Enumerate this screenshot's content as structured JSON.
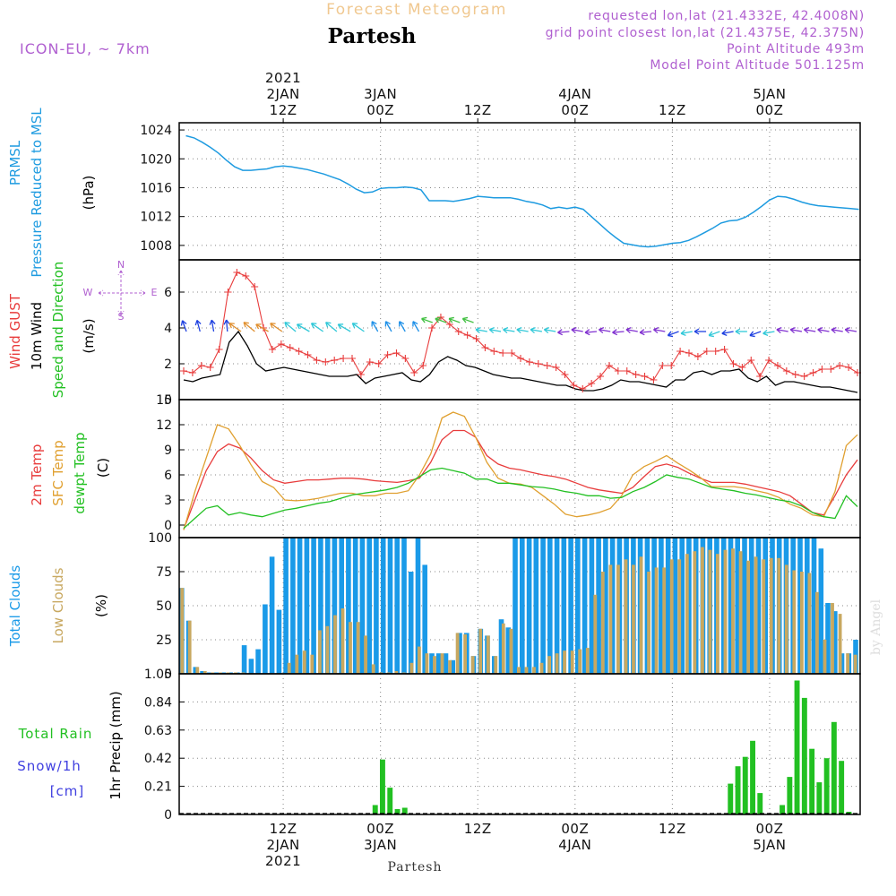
{
  "header": {
    "title": "Forecast Meteogram",
    "location": "Partesh",
    "model": "ICON-EU, ~ 7km",
    "requested": "requested lon,lat (21.4332E, 42.4008N)",
    "grid": "grid point closest lon,lat (21.4375E, 42.375N)",
    "point_alt": "Point Altitude 493m",
    "model_alt": "Model Point Altitude 501.125m",
    "footer": "Partesh",
    "watermark": "by Angel"
  },
  "colors": {
    "pressure": "#1e9be0",
    "gust": "#e83c3c",
    "wind": "#000000",
    "temp": "#e83c3c",
    "sfc": "#e0a030",
    "dew": "#22c022",
    "total_cloud": "#1a9ae8",
    "low_cloud": "#c8a860",
    "rain": "#22c022",
    "snow": "#4040e0",
    "title_orange": "#f0c890",
    "purple": "#b060d0"
  },
  "time_axis": {
    "top": [
      {
        "h": 12,
        "lines": [
          "2021",
          "2JAN",
          "12Z"
        ]
      },
      {
        "h": 24,
        "lines": [
          "3JAN",
          "00Z"
        ]
      },
      {
        "h": 36,
        "lines": [
          "12Z"
        ]
      },
      {
        "h": 48,
        "lines": [
          "4JAN",
          "00Z"
        ]
      },
      {
        "h": 60,
        "lines": [
          "12Z"
        ]
      },
      {
        "h": 72,
        "lines": [
          "5JAN",
          "00Z"
        ]
      }
    ],
    "bottom": [
      {
        "h": 12,
        "lines": [
          "12Z",
          "2JAN",
          "2021"
        ]
      },
      {
        "h": 24,
        "lines": [
          "00Z",
          "3JAN"
        ]
      },
      {
        "h": 36,
        "lines": [
          "12Z"
        ]
      },
      {
        "h": 48,
        "lines": [
          "00Z",
          "4JAN"
        ]
      },
      {
        "h": 60,
        "lines": [
          "12Z"
        ]
      },
      {
        "h": 72,
        "lines": [
          "00Z",
          "5JAN"
        ]
      }
    ]
  },
  "panels": {
    "pressure": {
      "labels": [
        "PRMSL",
        "Pressure Reduced to MSL"
      ],
      "unit": "(hPa)"
    },
    "wind": {
      "gust": "Wind GUST",
      "wind": "10m Wind",
      "dir": "Speed and Direction",
      "unit": "(m/s)",
      "compass": {
        "n": "N",
        "s": "S",
        "e": "E",
        "w": "W"
      }
    },
    "temp": {
      "t2m": "2m Temp",
      "sfc": "SFC Temp",
      "dew": "dewpt Temp",
      "unit": "(C)"
    },
    "cloud": {
      "total": "Total Clouds",
      "low": "Low Clouds",
      "unit": "(%)"
    },
    "precip": {
      "rain": "Total  Rain",
      "snow": "Snow/1h",
      "cm": "[cm]",
      "unit": "1hr Precip (mm)"
    }
  },
  "chart_data": [
    {
      "type": "line",
      "name": "pressure",
      "ylim": [
        1006,
        1025
      ],
      "yticks": [
        1008,
        1012,
        1016,
        1020,
        1024
      ],
      "x": [
        0,
        1,
        2,
        3,
        4,
        5,
        6,
        7,
        8,
        9,
        10,
        11,
        12,
        13,
        14,
        15,
        16,
        17,
        18,
        19,
        20,
        21,
        22,
        23,
        24,
        25,
        26,
        27,
        28,
        29,
        30,
        31,
        32,
        33,
        34,
        35,
        36,
        37,
        38,
        39,
        40,
        41,
        42,
        43,
        44,
        45,
        46,
        47,
        48,
        49,
        50,
        51,
        52,
        53,
        54,
        55,
        56,
        57,
        58,
        59,
        60,
        61,
        62,
        63,
        64,
        65,
        66,
        67,
        68,
        69,
        70,
        71,
        72,
        73,
        74,
        75,
        76,
        77,
        78,
        79,
        80,
        81,
        82,
        83
      ],
      "series": [
        {
          "name": "PRMSL",
          "values": [
            1023.2,
            1022.9,
            1022.3,
            1021.6,
            1020.8,
            1019.8,
            1018.9,
            1018.4,
            1018.4,
            1018.5,
            1018.6,
            1018.9,
            1019.0,
            1018.9,
            1018.7,
            1018.5,
            1018.2,
            1017.9,
            1017.5,
            1017.1,
            1016.5,
            1015.8,
            1015.3,
            1015.4,
            1015.9,
            1016.0,
            1016.0,
            1016.1,
            1016.0,
            1015.7,
            1014.2,
            1014.2,
            1014.2,
            1014.1,
            1014.3,
            1014.5,
            1014.8,
            1014.7,
            1014.6,
            1014.6,
            1014.6,
            1014.4,
            1014.1,
            1013.9,
            1013.6,
            1013.1,
            1013.3,
            1013.1,
            1013.3,
            1013.0,
            1012.0,
            1011.0,
            1010.0,
            1009.1,
            1008.3,
            1008.1,
            1007.9,
            1007.8,
            1007.9,
            1008.1,
            1008.3,
            1008.4,
            1008.7,
            1009.2,
            1009.8,
            1010.4,
            1011.1,
            1011.4,
            1011.5,
            1011.9,
            1012.6,
            1013.4,
            1014.3,
            1014.8,
            1014.7,
            1014.4,
            1014.0,
            1013.7,
            1013.5,
            1013.4,
            1013.3,
            1013.2,
            1013.1,
            1013.0
          ]
        }
      ]
    },
    {
      "type": "line",
      "name": "wind",
      "ylim": [
        0,
        7.8
      ],
      "yticks": [
        0,
        2,
        4,
        6
      ],
      "series": [
        {
          "name": "Wind GUST",
          "values": [
            1.6,
            1.5,
            1.9,
            1.8,
            2.8,
            6.0,
            7.1,
            6.9,
            6.3,
            4.0,
            2.8,
            3.1,
            2.9,
            2.7,
            2.5,
            2.2,
            2.1,
            2.2,
            2.3,
            2.3,
            1.4,
            2.1,
            2.0,
            2.5,
            2.6,
            2.3,
            1.5,
            1.9,
            4.0,
            4.6,
            4.2,
            3.8,
            3.6,
            3.4,
            2.9,
            2.7,
            2.6,
            2.6,
            2.3,
            2.1,
            2.0,
            1.9,
            1.8,
            1.4,
            0.8,
            0.6,
            0.9,
            1.3,
            1.9,
            1.6,
            1.6,
            1.4,
            1.3,
            1.1,
            1.9,
            1.9,
            2.7,
            2.6,
            2.4,
            2.7,
            2.7,
            2.8,
            2.0,
            1.8,
            2.2,
            1.3,
            2.2,
            1.9,
            1.6,
            1.4,
            1.3,
            1.5,
            1.7,
            1.7,
            1.9,
            1.8,
            1.5
          ]
        },
        {
          "name": "10m Wind",
          "values": [
            1.1,
            1.0,
            1.2,
            1.3,
            1.4,
            3.2,
            3.8,
            3.0,
            2.0,
            1.6,
            1.7,
            1.8,
            1.7,
            1.6,
            1.5,
            1.4,
            1.3,
            1.3,
            1.3,
            1.4,
            0.9,
            1.2,
            1.3,
            1.4,
            1.5,
            1.1,
            1.0,
            1.4,
            2.1,
            2.4,
            2.2,
            1.9,
            1.8,
            1.6,
            1.4,
            1.3,
            1.2,
            1.2,
            1.1,
            1.0,
            0.9,
            0.8,
            0.8,
            0.6,
            0.5,
            0.5,
            0.6,
            0.8,
            1.1,
            1.0,
            1.0,
            0.9,
            0.8,
            0.7,
            1.1,
            1.1,
            1.5,
            1.6,
            1.4,
            1.6,
            1.6,
            1.7,
            1.2,
            1.0,
            1.3,
            0.8,
            1.0,
            1.0,
            0.9,
            0.8,
            0.7,
            0.7,
            0.6,
            0.5,
            0.4
          ]
        }
      ]
    },
    {
      "type": "line",
      "name": "temperature",
      "ylim": [
        -1.5,
        15
      ],
      "yticks": [
        0,
        3,
        6,
        9,
        12,
        15
      ],
      "series": [
        {
          "name": "2m Temp",
          "values": [
            -0.5,
            3.0,
            6.5,
            8.8,
            9.7,
            9.2,
            8.0,
            6.5,
            5.4,
            5.0,
            5.2,
            5.4,
            5.4,
            5.5,
            5.6,
            5.6,
            5.5,
            5.3,
            5.2,
            5.1,
            5.3,
            5.6,
            7.5,
            10.2,
            11.3,
            11.3,
            10.5,
            8.3,
            7.3,
            6.8,
            6.6,
            6.3,
            6.0,
            5.8,
            5.5,
            5.0,
            4.5,
            4.2,
            4.0,
            3.8,
            4.5,
            5.8,
            7.0,
            7.3,
            6.9,
            6.2,
            5.6,
            5.1,
            5.1,
            5.1,
            4.9,
            4.6,
            4.3,
            4.0,
            3.5,
            2.5,
            1.5,
            1.2,
            3.5,
            6.0,
            7.8
          ]
        },
        {
          "name": "SFC Temp",
          "values": [
            -0.6,
            4.0,
            8.0,
            12.0,
            11.5,
            9.5,
            7.2,
            5.2,
            4.5,
            3.0,
            2.9,
            3.0,
            3.2,
            3.5,
            3.8,
            3.8,
            3.5,
            3.5,
            3.8,
            3.8,
            4.1,
            6.0,
            8.5,
            12.8,
            13.5,
            13.0,
            10.5,
            7.5,
            5.6,
            5.0,
            4.9,
            4.5,
            3.5,
            2.5,
            1.3,
            1.0,
            1.2,
            1.5,
            2.0,
            3.5,
            6.0,
            7.0,
            7.6,
            8.3,
            7.4,
            6.6,
            5.7,
            4.6,
            4.6,
            4.6,
            4.4,
            4.1,
            3.8,
            3.3,
            2.5,
            2.0,
            1.2,
            1.0,
            4.0,
            9.5,
            10.8
          ]
        },
        {
          "name": "dewpt Temp",
          "values": [
            -0.4,
            0.8,
            2.0,
            2.3,
            1.2,
            1.5,
            1.2,
            1.0,
            1.4,
            1.8,
            2.0,
            2.3,
            2.6,
            2.8,
            3.2,
            3.6,
            3.8,
            4.0,
            4.2,
            4.5,
            5.0,
            5.8,
            6.6,
            6.8,
            6.5,
            6.2,
            5.5,
            5.5,
            5.0,
            5.0,
            4.8,
            4.6,
            4.5,
            4.3,
            4.0,
            3.8,
            3.5,
            3.5,
            3.2,
            3.3,
            4.0,
            4.5,
            5.2,
            6.0,
            5.7,
            5.5,
            5.0,
            4.5,
            4.3,
            4.1,
            3.8,
            3.6,
            3.3,
            3.0,
            2.8,
            2.3,
            1.5,
            1.0,
            0.8,
            3.5,
            2.2
          ]
        }
      ]
    },
    {
      "type": "bar",
      "name": "clouds",
      "ylim": [
        0,
        100
      ],
      "yticks": [
        0,
        25,
        50,
        75,
        100
      ],
      "series": [
        {
          "name": "Total Clouds",
          "values": [
            63,
            39,
            5,
            2,
            1,
            1,
            1,
            1,
            1,
            21,
            11,
            18,
            51,
            86,
            47,
            100,
            100,
            100,
            100,
            100,
            100,
            100,
            100,
            100,
            100,
            100,
            100,
            100,
            100,
            100,
            100,
            100,
            100,
            75,
            100,
            80,
            15,
            15,
            15,
            10,
            30,
            30,
            13,
            33,
            28,
            13,
            40,
            34,
            100,
            100,
            100,
            100,
            100,
            100,
            100,
            100,
            100,
            100,
            100,
            100,
            100,
            100,
            100,
            100,
            100,
            100,
            100,
            100,
            100,
            100,
            100,
            100,
            100,
            100,
            100,
            100,
            100,
            100,
            100,
            100,
            100,
            100,
            100,
            100,
            100,
            100,
            100,
            100,
            100,
            100,
            100,
            100,
            92,
            52,
            46,
            15,
            15,
            25
          ]
        },
        {
          "name": "Low Clouds",
          "values": [
            63,
            39,
            5,
            2,
            1,
            1,
            1,
            1,
            1,
            0,
            0,
            0,
            0,
            0,
            8,
            14,
            17,
            14,
            32,
            35,
            43,
            48,
            38,
            38,
            28,
            7,
            1,
            1,
            2,
            1,
            8,
            20,
            15,
            13,
            15,
            10,
            30,
            29,
            13,
            33,
            28,
            13,
            37,
            33,
            5,
            5,
            5,
            8,
            13,
            15,
            17,
            17,
            18,
            19,
            58,
            75,
            80,
            80,
            84,
            80,
            86,
            75,
            78,
            78,
            84,
            84,
            88,
            90,
            93,
            91,
            88,
            91,
            92,
            90,
            83,
            86,
            84,
            85,
            85,
            80,
            76,
            75,
            74,
            60,
            25,
            52,
            44,
            15,
            14
          ]
        }
      ]
    },
    {
      "type": "bar",
      "name": "precipitation",
      "ylim": [
        0,
        1.05
      ],
      "yticks": [
        0,
        0.21,
        0.42,
        0.63,
        0.84,
        1.05
      ],
      "series": [
        {
          "name": "Total Rain",
          "values": [
            0,
            0,
            0,
            0,
            0,
            0,
            0,
            0,
            0,
            0,
            0,
            0,
            0,
            0,
            0,
            0,
            0,
            0,
            0,
            0,
            0,
            0,
            0,
            0,
            0,
            0,
            0.07,
            0.41,
            0.2,
            0.04,
            0.05,
            0,
            0,
            0,
            0,
            0,
            0,
            0,
            0,
            0,
            0,
            0,
            0,
            0,
            0,
            0,
            0,
            0,
            0,
            0,
            0,
            0,
            0,
            0,
            0,
            0,
            0,
            0,
            0,
            0,
            0,
            0,
            0,
            0,
            0,
            0,
            0,
            0,
            0,
            0,
            0,
            0,
            0,
            0,
            0.23,
            0.36,
            0.43,
            0.55,
            0.16,
            0,
            0,
            0.07,
            0.28,
            1.0,
            0.87,
            0.49,
            0.24,
            0.42,
            0.69,
            0.4,
            0.02,
            0
          ]
        }
      ]
    }
  ]
}
